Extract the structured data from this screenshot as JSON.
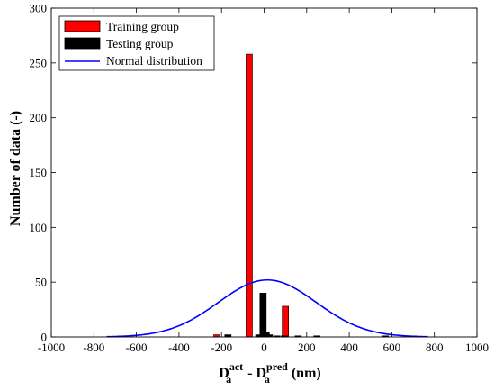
{
  "chart_data": {
    "type": "bar",
    "xlim": [
      -1000,
      1000
    ],
    "ylim": [
      0,
      300
    ],
    "xticks": [
      -1000,
      -800,
      -600,
      -400,
      -200,
      0,
      200,
      400,
      600,
      800,
      1000
    ],
    "yticks": [
      0,
      50,
      100,
      150,
      200,
      250,
      300
    ],
    "bin_width": 30,
    "ylabel": "Number of data (-)",
    "xlabel": {
      "d1": "D",
      "sup1": "act",
      "sub1": "a",
      "mid": " - ",
      "d2": "D",
      "sup2": "pred",
      "sub2": "a",
      "unit": " (nm)"
    },
    "legend_position": "top-left",
    "series": [
      {
        "name": "Training group",
        "kind": "bar",
        "color": "#ff0000",
        "x": [
          -222,
          -70,
          100
        ],
        "values": [
          2,
          258,
          28
        ]
      },
      {
        "name": "Testing group",
        "kind": "bar",
        "color": "#000000",
        "x": [
          -170,
          -25,
          -5,
          10,
          25,
          60,
          95,
          160,
          248,
          570
        ],
        "values": [
          2,
          2,
          40,
          4,
          2,
          1,
          1,
          1,
          1,
          1
        ]
      },
      {
        "name": "Normal distribution",
        "kind": "line",
        "color": "#0000ff",
        "mean": 15,
        "peak": 52,
        "sd": 230,
        "x_range": [
          -740,
          770
        ]
      }
    ]
  }
}
